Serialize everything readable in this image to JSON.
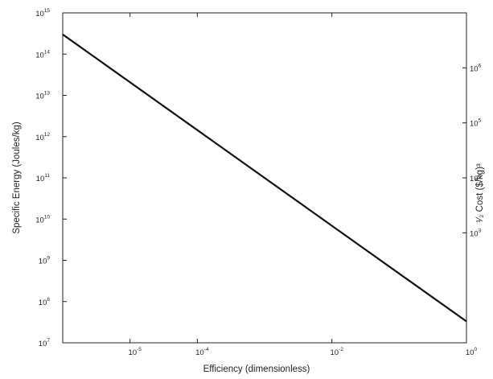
{
  "chart_data": {
    "type": "line",
    "xlabel": "Efficiency (dimensionless)",
    "ylabel": "Specific Energy (Joules/kg)",
    "y2label": "¹⁄₂ Cost ($/kg)³",
    "xscale": "log",
    "yscale": "log",
    "y2scale": "log",
    "xlim": [
      1e-06,
      1
    ],
    "ylim": [
      10000000,
      1000000000000000
    ],
    "y2lim": [
      10,
      10000000
    ],
    "grid": false,
    "x_ticks": [
      {
        "value": 1e-05,
        "base": "10",
        "exp": "-5"
      },
      {
        "value": 0.0001,
        "base": "10",
        "exp": "-4"
      },
      {
        "value": 0.01,
        "base": "10",
        "exp": "-2"
      },
      {
        "value": 1,
        "base": "10",
        "exp": "0"
      }
    ],
    "y_ticks": [
      {
        "value": 10000000,
        "base": "10",
        "exp": "7"
      },
      {
        "value": 100000000,
        "base": "10",
        "exp": "8"
      },
      {
        "value": 1000000000,
        "base": "10",
        "exp": "9"
      },
      {
        "value": 10000000000,
        "base": "10",
        "exp": "10"
      },
      {
        "value": 100000000000,
        "base": "10",
        "exp": "11"
      },
      {
        "value": 1000000000000,
        "base": "10",
        "exp": "12"
      },
      {
        "value": 10000000000000,
        "base": "10",
        "exp": "13"
      },
      {
        "value": 100000000000000,
        "base": "10",
        "exp": "14"
      },
      {
        "value": 1000000000000000,
        "base": "10",
        "exp": "15"
      }
    ],
    "y2_ticks": [
      {
        "value": 1000,
        "base": "10",
        "exp": "3"
      },
      {
        "value": 10000,
        "base": "10",
        "exp": "4"
      },
      {
        "value": 100000,
        "base": "10",
        "exp": "5"
      },
      {
        "value": 1000000,
        "base": "10",
        "exp": "6"
      }
    ],
    "series": [
      {
        "x": [
          1e-06,
          1
        ],
        "y": [
          300000000000000,
          33000000
        ]
      }
    ]
  }
}
